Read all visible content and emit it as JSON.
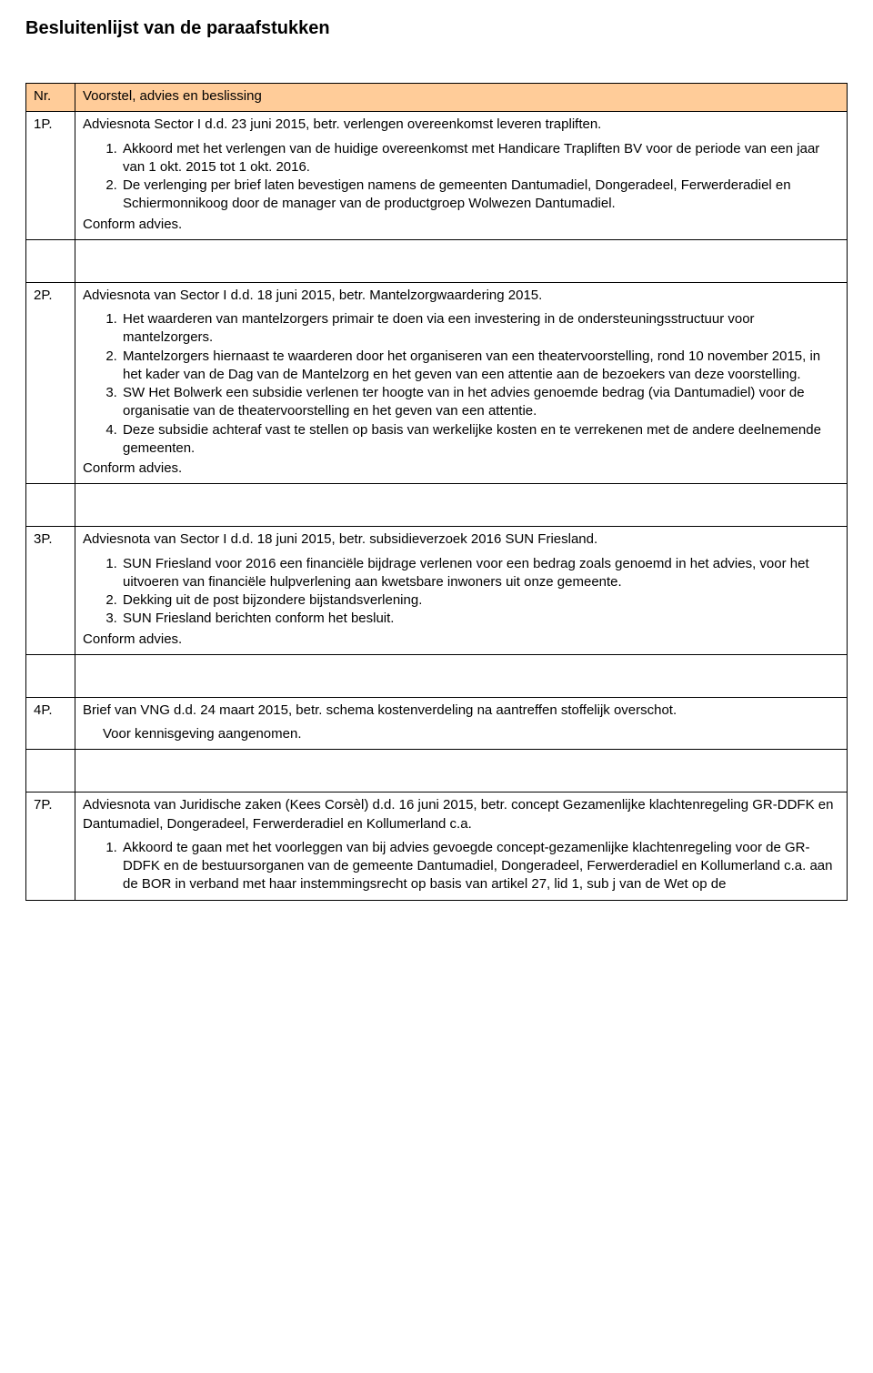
{
  "title": "Besluitenlijst van de paraafstukken",
  "table": {
    "header": {
      "nr": "Nr.",
      "voorstel": "Voorstel, advies en beslissing"
    },
    "header_bg": "#ffcc99",
    "border_color": "#000000",
    "rows": [
      {
        "nr": "1P.",
        "title": "Adviesnota Sector I d.d. 23 juni 2015, betr. verlengen overeenkomst leveren trapliften.",
        "points": [
          "Akkoord met het verlengen van de huidige overeenkomst met Handicare Trapliften BV voor de periode van een jaar van 1 okt. 2015 tot 1 okt. 2016.",
          "De verlenging per brief laten bevestigen namens de gemeenten Dantumadiel, Dongeradeel, Ferwerderadiel en Schiermonnikoog door de manager van de productgroep Wolwezen Dantumadiel."
        ],
        "closing": "Conform advies."
      },
      {
        "nr": "2P.",
        "title": "Adviesnota van Sector I d.d. 18 juni 2015, betr. Mantelzorgwaardering 2015.",
        "points": [
          "Het waarderen van mantelzorgers primair te doen via een investering in de ondersteuningsstructuur voor mantelzorgers.",
          "Mantelzorgers hiernaast te waarderen door het organiseren van een theatervoorstelling, rond 10 november 2015, in het kader van de Dag van de Mantelzorg en het geven van een attentie aan de bezoekers van deze voorstelling.",
          "SW Het Bolwerk een subsidie verlenen ter hoogte van in het advies genoemde bedrag (via Dantumadiel) voor de organisatie van de theatervoorstelling en het geven van een attentie.",
          "Deze subsidie achteraf vast te stellen op basis van werkelijke kosten en te verrekenen met de andere deelnemende gemeenten."
        ],
        "closing": "Conform advies."
      },
      {
        "nr": "3P.",
        "title": "Adviesnota van Sector I d.d. 18 juni 2015, betr. subsidieverzoek 2016 SUN Friesland.",
        "points": [
          "SUN Friesland voor 2016 een financiële bijdrage verlenen voor een bedrag zoals genoemd in het advies, voor het uitvoeren van financiële hulpverlening aan kwetsbare inwoners uit onze gemeente.",
          "Dekking uit de post bijzondere bijstandsverlening.",
          "SUN Friesland berichten conform het besluit."
        ],
        "closing": "Conform advies."
      },
      {
        "nr": "4P.",
        "title": "Brief van VNG d.d. 24 maart 2015, betr. schema kostenverdeling na aantreffen stoffelijk overschot.",
        "points": [],
        "closing_indented": "Voor kennisgeving aangenomen."
      },
      {
        "nr": "7P.",
        "title": "Adviesnota van Juridische zaken (Kees Corsèl) d.d. 16 juni 2015, betr. concept Gezamenlijke klachtenregeling GR-DDFK en Dantumadiel, Dongeradeel, Ferwerderadiel en Kollumerland c.a.",
        "points": [
          "Akkoord te gaan met het voorleggen van bij advies gevoegde concept-gezamenlijke klachtenregeling voor de GR-DDFK en de bestuursorganen van de gemeente Dantumadiel, Dongeradeel, Ferwerderadiel en Kollumerland c.a. aan de BOR in verband met haar instemmingsrecht op basis van artikel 27, lid 1, sub j van de Wet op de"
        ],
        "closing": ""
      }
    ]
  }
}
